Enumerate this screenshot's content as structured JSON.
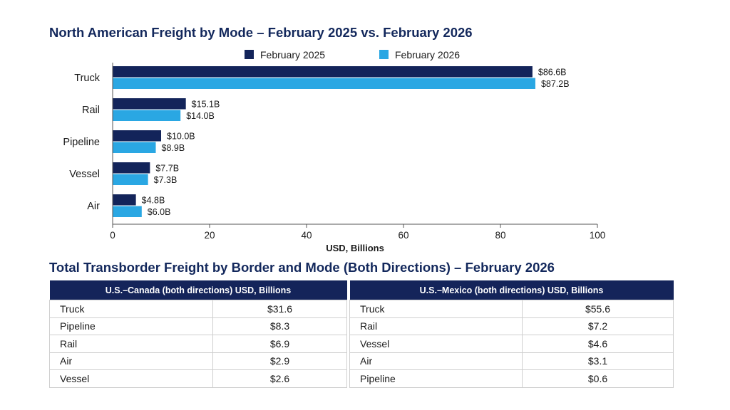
{
  "chart_title": "North American Freight by Mode – February 2025 vs. February 2026",
  "chart_data": {
    "type": "bar",
    "orientation": "horizontal",
    "title": "North American Freight by Mode – February 2025 vs. February 2026",
    "categories": [
      "Truck",
      "Rail",
      "Pipeline",
      "Vessel",
      "Air"
    ],
    "series": [
      {
        "name": "February 2025",
        "color": "#13245a",
        "values": [
          86.6,
          15.1,
          10.0,
          7.7,
          4.8
        ],
        "labels": [
          "$86.6B",
          "$15.1B",
          "$10.0B",
          "$7.7B",
          "$4.8B"
        ]
      },
      {
        "name": "February 2026",
        "color": "#2aa7e3",
        "values": [
          87.2,
          14.0,
          8.9,
          7.3,
          6.0
        ],
        "labels": [
          "$87.2B",
          "$14.0B",
          "$8.9B",
          "$7.3B",
          "$6.0B"
        ]
      }
    ],
    "xlabel": "USD, Billions",
    "ylabel": "",
    "xlim": [
      0,
      100
    ],
    "xticks": [
      0,
      20,
      40,
      60,
      80,
      100
    ],
    "grid": false,
    "legend_position": "top"
  },
  "table_title": "Total Transborder Freight by Border and Mode (Both Directions) – February 2026",
  "tables": {
    "canada": {
      "header": "U.S.–Canada (both directions) USD, Billions",
      "rows": [
        {
          "mode": "Truck",
          "value": "$31.6"
        },
        {
          "mode": "Pipeline",
          "value": "$8.3"
        },
        {
          "mode": "Rail",
          "value": "$6.9"
        },
        {
          "mode": "Air",
          "value": "$2.9"
        },
        {
          "mode": "Vessel",
          "value": "$2.6"
        }
      ]
    },
    "mexico": {
      "header": "U.S.–Mexico (both directions) USD, Billions",
      "rows": [
        {
          "mode": "Truck",
          "value": "$55.6"
        },
        {
          "mode": "Rail",
          "value": "$7.2"
        },
        {
          "mode": "Vessel",
          "value": "$4.6"
        },
        {
          "mode": "Air",
          "value": "$3.1"
        },
        {
          "mode": "Pipeline",
          "value": "$0.6"
        }
      ]
    }
  }
}
